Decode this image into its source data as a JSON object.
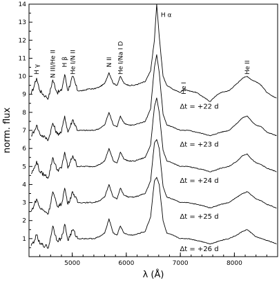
{
  "chart_data": {
    "type": "line",
    "xlabel": "λ (Å)",
    "ylabel": "norm. flux",
    "xlim": [
      4200,
      8800
    ],
    "ylim": [
      0,
      14
    ],
    "x_ticks": [
      {
        "value": 5000,
        "label": "5000"
      },
      {
        "value": 6000,
        "label": "6000"
      },
      {
        "value": 7000,
        "label": "7000"
      },
      {
        "value": 8000,
        "label": "8000"
      }
    ],
    "x_minor_step": 200,
    "y_ticks": [
      {
        "value": 1,
        "label": "1"
      },
      {
        "value": 2,
        "label": "2"
      },
      {
        "value": 3,
        "label": "3"
      },
      {
        "value": 4,
        "label": "4"
      },
      {
        "value": 5,
        "label": "5"
      },
      {
        "value": 6,
        "label": "6"
      },
      {
        "value": 7,
        "label": "7"
      },
      {
        "value": 8,
        "label": "8"
      },
      {
        "value": 9,
        "label": "9"
      },
      {
        "value": 10,
        "label": "10"
      },
      {
        "value": 11,
        "label": "11"
      },
      {
        "value": 12,
        "label": "12"
      },
      {
        "value": 13,
        "label": "13"
      },
      {
        "value": 14,
        "label": "14"
      }
    ],
    "line_labels": [
      {
        "text": "H γ",
        "x": 4340,
        "y": 10.1
      },
      {
        "text": "N III/He II",
        "x": 4640,
        "y": 9.9
      },
      {
        "text": "H β",
        "x": 4861,
        "y": 10.5
      },
      {
        "text": "He I/N II",
        "x": 5010,
        "y": 10.1
      },
      {
        "text": "N II",
        "x": 5680,
        "y": 10.5
      },
      {
        "text": "He I/Na I D",
        "x": 5890,
        "y": 10.1
      },
      {
        "text": "H α",
        "x": 6563,
        "y": 13.3
      },
      {
        "text": "He I",
        "x": 7065,
        "y": 9.0
      },
      {
        "text": "He II",
        "x": 8237,
        "y": 10.1
      }
    ],
    "epoch_labels": [
      {
        "text": "Δt = +22 d",
        "x": 7350,
        "y": 8.2
      },
      {
        "text": "Δt = +23 d",
        "x": 7350,
        "y": 6.1
      },
      {
        "text": "Δt = +24 d",
        "x": 7350,
        "y": 4.1
      },
      {
        "text": "Δt = +25 d",
        "x": 7350,
        "y": 2.1
      },
      {
        "text": "Δt = +26 d",
        "x": 7350,
        "y": 0.3
      }
    ],
    "spectrum_x": [
      4240,
      4300,
      4340,
      4400,
      4500,
      4560,
      4640,
      4720,
      4800,
      4861,
      4920,
      5010,
      5100,
      5200,
      5300,
      5400,
      5500,
      5600,
      5680,
      5760,
      5830,
      5890,
      5960,
      6050,
      6150,
      6250,
      6350,
      6450,
      6520,
      6563,
      6610,
      6680,
      6750,
      6850,
      7000,
      7065,
      7150,
      7300,
      7450,
      7550,
      7650,
      7750,
      7900,
      8050,
      8150,
      8237,
      8320,
      8400,
      8500,
      8600,
      8700,
      8780
    ],
    "series": [
      {
        "values": [
          9.0,
          9.5,
          9.9,
          9.2,
          8.9,
          8.8,
          9.8,
          9.1,
          9.2,
          10.1,
          9.2,
          10.0,
          9.2,
          9.2,
          9.3,
          9.3,
          9.4,
          9.6,
          10.2,
          9.6,
          9.5,
          10.0,
          9.6,
          9.5,
          9.5,
          9.6,
          9.7,
          10.3,
          12.0,
          14.0,
          12.2,
          10.0,
          9.5,
          9.3,
          9.1,
          9.3,
          9.2,
          9.1,
          8.8,
          8.6,
          8.9,
          9.1,
          9.2,
          9.6,
          9.9,
          10.0,
          9.8,
          9.7,
          9.5,
          9.1,
          8.9,
          8.8
        ]
      },
      {
        "values": [
          6.7,
          7.0,
          7.3,
          6.8,
          6.6,
          6.5,
          7.4,
          6.8,
          6.9,
          7.8,
          6.9,
          7.6,
          7.0,
          7.0,
          7.0,
          7.0,
          7.1,
          7.3,
          8.0,
          7.3,
          7.2,
          7.8,
          7.4,
          7.3,
          7.3,
          7.4,
          7.5,
          8.2,
          10.5,
          11.2,
          10.2,
          7.9,
          7.3,
          7.2,
          7.0,
          7.0,
          7.0,
          6.9,
          6.8,
          6.7,
          6.8,
          6.9,
          7.0,
          7.4,
          7.7,
          7.8,
          7.5,
          7.3,
          7.2,
          6.9,
          6.8,
          6.7
        ]
      },
      {
        "values": [
          4.6,
          4.9,
          5.3,
          4.7,
          4.5,
          4.4,
          5.5,
          4.8,
          4.9,
          5.8,
          4.9,
          5.6,
          5.0,
          5.0,
          5.0,
          5.0,
          5.1,
          5.3,
          6.0,
          5.3,
          5.2,
          5.8,
          5.4,
          5.3,
          5.3,
          5.4,
          5.5,
          6.2,
          8.3,
          8.8,
          8.0,
          5.9,
          5.3,
          5.2,
          5.0,
          5.0,
          5.0,
          4.9,
          4.8,
          4.7,
          4.8,
          4.9,
          5.0,
          5.3,
          5.6,
          5.7,
          5.4,
          5.2,
          5.1,
          4.9,
          4.8,
          4.7
        ]
      },
      {
        "values": [
          2.5,
          2.9,
          3.2,
          2.7,
          2.5,
          2.4,
          3.6,
          2.8,
          2.9,
          3.8,
          2.9,
          3.6,
          3.0,
          3.0,
          3.0,
          3.0,
          3.1,
          3.3,
          4.0,
          3.3,
          3.2,
          3.8,
          3.4,
          3.3,
          3.3,
          3.4,
          3.5,
          4.2,
          6.3,
          6.5,
          6.0,
          3.9,
          3.3,
          3.2,
          3.0,
          3.0,
          3.0,
          2.9,
          2.8,
          2.7,
          2.8,
          2.9,
          3.0,
          3.3,
          3.5,
          3.6,
          3.4,
          3.2,
          3.1,
          2.9,
          2.8,
          2.7
        ]
      },
      {
        "values": [
          0.6,
          0.9,
          1.2,
          0.7,
          0.6,
          0.5,
          1.7,
          0.9,
          1.0,
          1.8,
          0.9,
          1.5,
          1.0,
          1.0,
          1.0,
          1.0,
          1.1,
          1.3,
          2.1,
          1.3,
          1.2,
          1.7,
          1.3,
          1.2,
          1.2,
          1.3,
          1.4,
          2.2,
          4.2,
          4.4,
          4.0,
          2.0,
          1.3,
          1.2,
          1.0,
          1.0,
          1.0,
          0.9,
          0.8,
          0.7,
          0.8,
          0.9,
          1.0,
          1.2,
          1.4,
          1.5,
          1.3,
          1.1,
          1.0,
          0.9,
          0.8,
          0.7
        ]
      }
    ]
  }
}
